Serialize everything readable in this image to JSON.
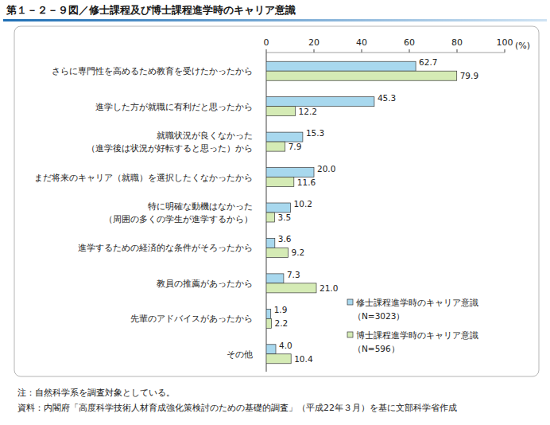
{
  "chart_data": {
    "type": "bar",
    "orientation": "horizontal",
    "title": "第１－２－９図／修士課程及び博士課程進学時のキャリア意識",
    "xlabel": "(%)",
    "categories": [
      "さらに専門性を高めるため教育を受けたかったから",
      "進学した方が就職に有利だと思ったから",
      "就職状況が良くなかった\n（進学後は状況が好転すると思った）から",
      "まだ将来のキャリア（就職）を選択したくなかったから",
      "特に明確な動機はなかった\n（周囲の多くの学生が進学するから）",
      "進学するための経済的な条件がそろったから",
      "教員の推薦があったから",
      "先輩のアドバイスがあったから",
      "その他"
    ],
    "series": [
      {
        "name": "修士課程進学時のキャリア意識\n（N=3023）",
        "color": "#a8d8ee",
        "values": [
          62.7,
          45.3,
          15.3,
          20.0,
          10.2,
          3.6,
          7.3,
          1.9,
          4.0
        ],
        "value_labels": [
          "62.7",
          "45.3",
          "15.3",
          "20.0",
          "10.2",
          "3.6",
          "7.3",
          "1.9",
          "4.0"
        ]
      },
      {
        "name": "博士課程進学時のキャリア意識\n（N=596）",
        "color": "#d5ebb5",
        "values": [
          79.9,
          12.2,
          7.9,
          11.6,
          3.5,
          9.2,
          21.0,
          2.2,
          10.4
        ],
        "value_labels": [
          "79.9",
          "12.2",
          "7.9",
          "11.6",
          "3.5",
          "9.2",
          "21.0",
          "2.2",
          "10.4"
        ]
      }
    ],
    "xlim": [
      0,
      100
    ],
    "xticks": [
      0,
      20,
      40,
      60,
      80,
      100
    ],
    "grid": false,
    "data_labels": true,
    "legend": "lower right",
    "annotations": [
      "注：自然科学系を調査対象としている。",
      "資料：内閣府「高度科学技術人材育成強化策検討のための基礎的調査」（平成22年３月）を基に文部科学省作成"
    ]
  }
}
